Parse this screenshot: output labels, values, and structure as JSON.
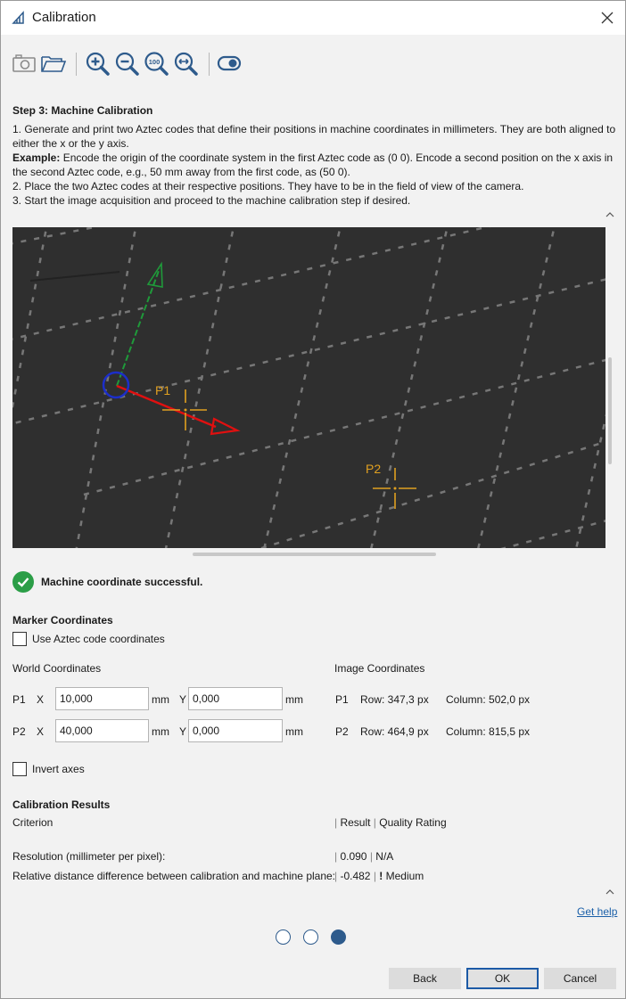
{
  "window": {
    "title": "Calibration",
    "close_icon": "close-icon"
  },
  "toolbar": {
    "icons": [
      "camera-icon",
      "folder-open-icon",
      "zoom-in-icon",
      "zoom-out-icon",
      "zoom-100-icon",
      "zoom-fit-icon",
      "toggle-icon"
    ],
    "zoom100_text": "100"
  },
  "step": {
    "title": "Step 3: Machine Calibration",
    "line1": "1. Generate and print two Aztec codes that define their positions in machine coordinates in millimeters. They are both aligned to either the x or the y axis.",
    "example_label": "Example:",
    "example_text": " Encode the origin of the coordinate system in the first Aztec code as (0 0). Encode a second position on the x axis in the second Aztec code, e.g., 50 mm away from the first code, as (50 0).",
    "line2": "2. Place the two Aztec codes at their respective positions. They have to be in the field of view of the camera.",
    "line3": "3. Start the image acquisition and proceed to the machine calibration step if desired."
  },
  "camera": {
    "p1_label": "P1",
    "p2_label": "P2"
  },
  "status": {
    "message": "Machine coordinate successful.",
    "color": "#2b9e47"
  },
  "marker": {
    "title": "Marker Coordinates",
    "use_aztec_label": "Use Aztec code coordinates",
    "world_label": "World Coordinates",
    "image_label": "Image Coordinates",
    "p1": {
      "name": "P1",
      "x_label": "X",
      "x_value": "10,000",
      "x_unit": "mm",
      "y_label": "Y",
      "y_value": "0,000",
      "y_unit": "mm",
      "row": "Row: 347,3 px",
      "column": "Column: 502,0 px"
    },
    "p2": {
      "name": "P2",
      "x_label": "X",
      "x_value": "40,000",
      "x_unit": "mm",
      "y_label": "Y",
      "y_value": "0,000",
      "y_unit": "mm",
      "row": "Row: 464,9 px",
      "column": "Column: 815,5 px"
    },
    "invert_label": "Invert axes"
  },
  "results": {
    "title": "Calibration Results",
    "criterion_header": "Criterion",
    "result_header": "Result",
    "quality_header": "Quality Rating",
    "rows": [
      {
        "criterion": "Resolution (millimeter per pixel):",
        "result": "0.090",
        "quality": "N/A",
        "warn": ""
      },
      {
        "criterion": "Relative distance difference between calibration and machine plane:",
        "result": "-0.482",
        "quality": "Medium",
        "warn": "!"
      }
    ]
  },
  "help_link": "Get help",
  "pager": {
    "total": 3,
    "current": 3
  },
  "buttons": {
    "back": "Back",
    "ok": "OK",
    "cancel": "Cancel"
  }
}
